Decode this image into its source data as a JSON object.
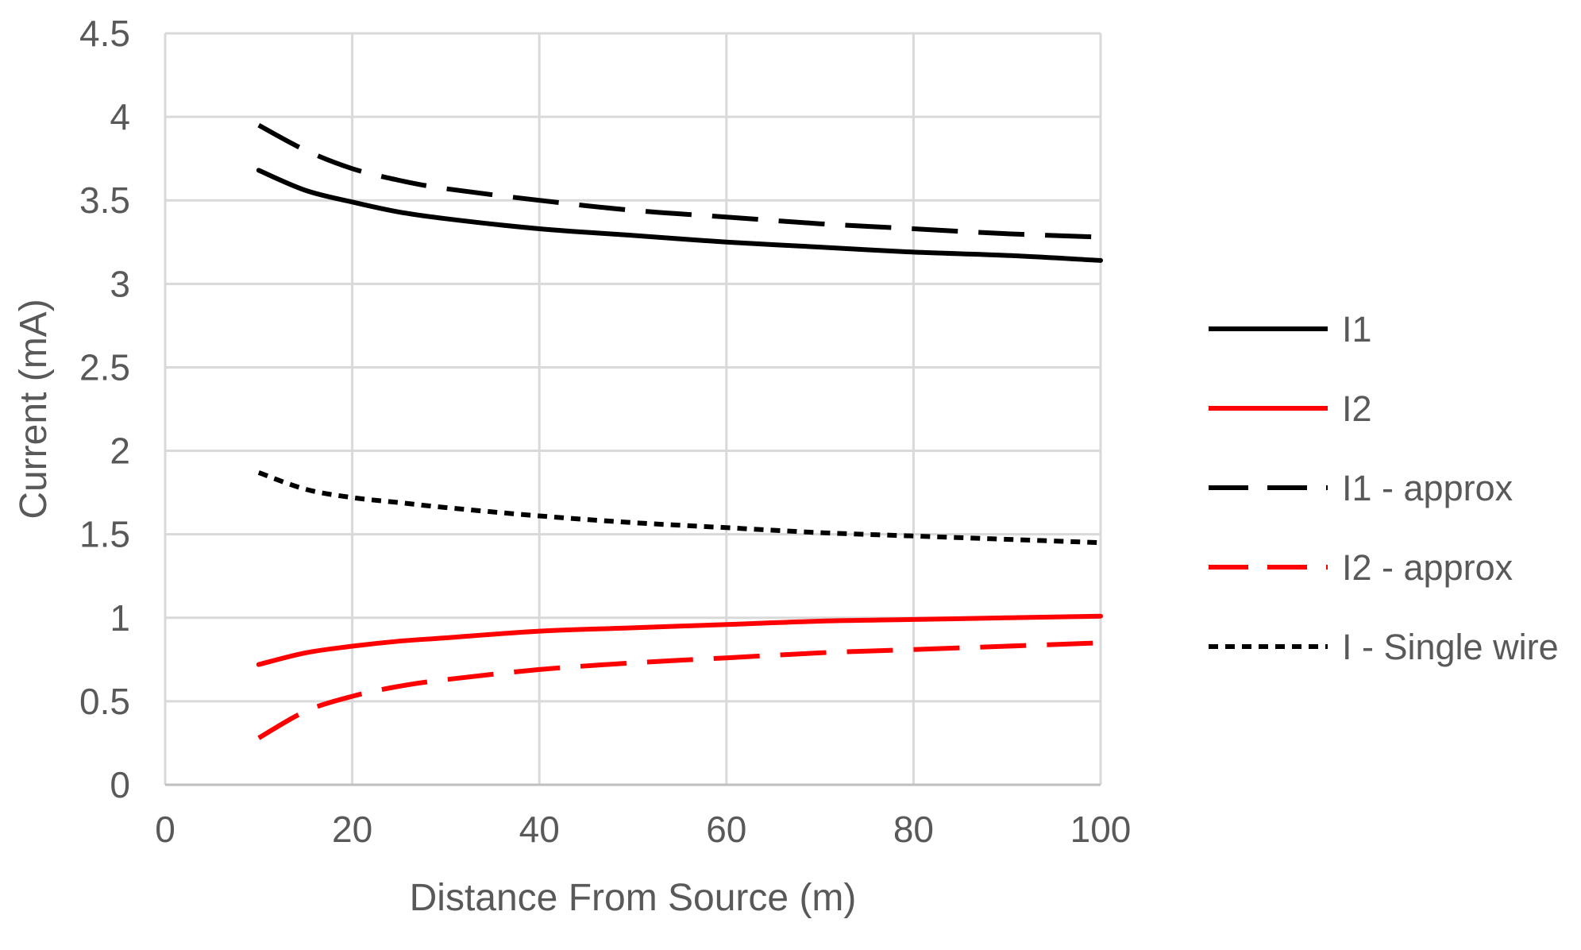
{
  "chart_data": {
    "type": "line",
    "title": "",
    "xlabel": "Distance From Source (m)",
    "ylabel": "Current (mA)",
    "xlim": [
      0,
      100
    ],
    "ylim": [
      0,
      4.5
    ],
    "x_ticks": [
      0,
      20,
      40,
      60,
      80,
      100
    ],
    "y_ticks": [
      0,
      0.5,
      1,
      1.5,
      2,
      2.5,
      3,
      3.5,
      4,
      4.5
    ],
    "x_tick_labels": [
      "0",
      "20",
      "40",
      "60",
      "80",
      "100"
    ],
    "y_tick_labels": [
      "0",
      "0.5",
      "1",
      "1.5",
      "2",
      "2.5",
      "3",
      "3.5",
      "4",
      "4.5"
    ],
    "grid": true,
    "legend_position": "right",
    "x": [
      10,
      15,
      20,
      25,
      30,
      40,
      50,
      60,
      70,
      80,
      90,
      100
    ],
    "series": [
      {
        "name": "I1",
        "color": "#000000",
        "style": "solid",
        "values": [
          3.68,
          3.56,
          3.49,
          3.43,
          3.39,
          3.33,
          3.29,
          3.25,
          3.22,
          3.19,
          3.17,
          3.14
        ]
      },
      {
        "name": "I2",
        "color": "#ff0000",
        "style": "solid",
        "values": [
          0.72,
          0.79,
          0.83,
          0.86,
          0.88,
          0.92,
          0.94,
          0.96,
          0.98,
          0.99,
          1.0,
          1.01
        ]
      },
      {
        "name": "I1 - approx",
        "color": "#000000",
        "style": "long-dash",
        "values": [
          3.95,
          3.8,
          3.69,
          3.62,
          3.57,
          3.5,
          3.44,
          3.4,
          3.36,
          3.33,
          3.3,
          3.28
        ]
      },
      {
        "name": "I2 - approx",
        "color": "#ff0000",
        "style": "long-dash",
        "values": [
          0.28,
          0.44,
          0.53,
          0.59,
          0.63,
          0.69,
          0.73,
          0.76,
          0.79,
          0.81,
          0.83,
          0.85
        ]
      },
      {
        "name": "I - Single wire",
        "color": "#000000",
        "style": "short-dash",
        "values": [
          1.87,
          1.77,
          1.72,
          1.69,
          1.66,
          1.61,
          1.57,
          1.54,
          1.51,
          1.49,
          1.47,
          1.45
        ]
      }
    ]
  }
}
